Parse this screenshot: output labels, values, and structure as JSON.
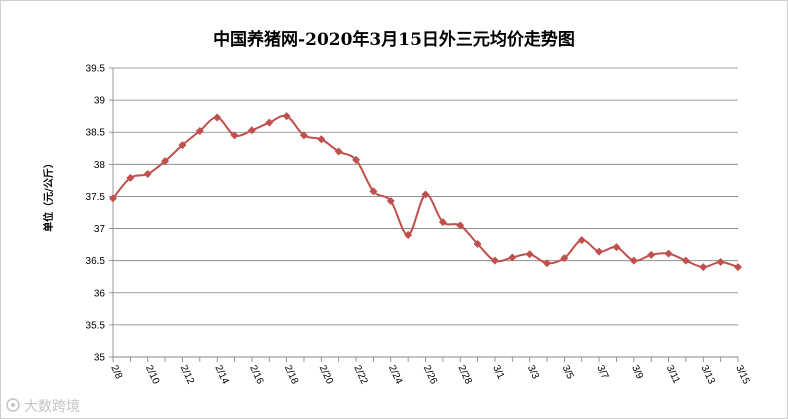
{
  "chart_data": {
    "type": "line",
    "title": "中国养猪网-2020年3月15日外三元均价走势图",
    "xlabel": "",
    "ylabel": "单位（元/公斤）",
    "ylim": [
      35,
      39.5
    ],
    "yticks": [
      "35",
      "35.5",
      "36",
      "36.5",
      "37",
      "37.5",
      "38",
      "38.5",
      "39",
      "39.5"
    ],
    "xtick_labels": [
      "2/8",
      "2/10",
      "2/12",
      "2/14",
      "2/16",
      "2/18",
      "2/20",
      "2/22",
      "2/24",
      "2/26",
      "2/28",
      "3/1",
      "3/3",
      "3/5",
      "3/7",
      "3/9",
      "3/11",
      "3/13",
      "3/15"
    ],
    "categories": [
      "2/8",
      "2/9",
      "2/10",
      "2/11",
      "2/12",
      "2/13",
      "2/14",
      "2/15",
      "2/16",
      "2/17",
      "2/18",
      "2/19",
      "2/20",
      "2/21",
      "2/22",
      "2/23",
      "2/24",
      "2/25",
      "2/26",
      "2/27",
      "2/28",
      "2/29",
      "3/1",
      "3/2",
      "3/3",
      "3/4",
      "3/5",
      "3/6",
      "3/7",
      "3/8",
      "3/9",
      "3/10",
      "3/11",
      "3/12",
      "3/13",
      "3/14",
      "3/15"
    ],
    "series": [
      {
        "values": [
          37.47,
          37.79,
          37.85,
          38.05,
          38.3,
          38.52,
          38.73,
          38.45,
          38.53,
          38.65,
          38.75,
          38.45,
          38.39,
          38.2,
          38.07,
          37.58,
          37.43,
          36.9,
          37.53,
          37.1,
          37.05,
          36.76,
          36.5,
          36.55,
          36.6,
          36.46,
          36.54,
          36.82,
          36.64,
          36.71,
          36.5,
          36.59,
          36.61,
          36.5,
          36.4,
          36.48,
          36.4
        ],
        "color": "#c0504d",
        "marker": "diamond"
      }
    ],
    "grid": true,
    "legend": "none"
  },
  "watermark": "大数跨境",
  "watermark_icon": "logo-swirl-icon"
}
